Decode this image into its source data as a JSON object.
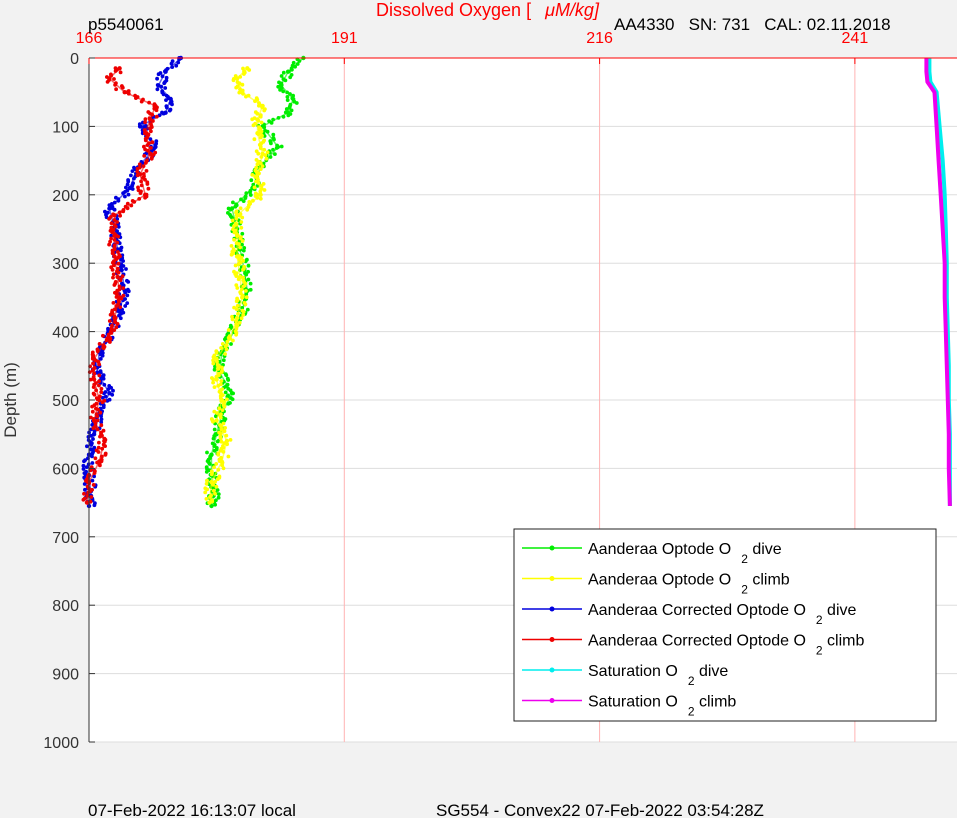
{
  "chart_data": {
    "type": "scatter",
    "title": "Dissolved Oxygen [",
    "title_unit": "μM/kg]",
    "ylabel": "Depth (m)",
    "xlim": [
      166,
      251
    ],
    "ylim": [
      0,
      1000
    ],
    "y_reversed": true,
    "x_axis_position": "top",
    "x_ticks": [
      166,
      191,
      216,
      241
    ],
    "y_ticks": [
      0,
      100,
      200,
      300,
      400,
      500,
      600,
      700,
      800,
      900,
      1000
    ],
    "grid": true,
    "legend_position": "bottom-right",
    "header_left": "p5540061",
    "header_right": "AA4330   SN: 731   CAL: 02.11.2018",
    "footer_left": "07-Feb-2022 16:13:07 local",
    "footer_right": "SG554 - Convex22 07-Feb-2022 03:54:28Z",
    "colors": {
      "title": "#ff0000",
      "x_ticks": "#ff0000",
      "x_grid": "#ffb3b3",
      "y_grid": "#dddddd",
      "axis_line": "#ff0000"
    },
    "series": [
      {
        "name": "Aanderaa Optode O",
        "sub": "2",
        "suffix": " dive",
        "color": "#00ee00",
        "marker": "dots",
        "depth": [
          0,
          20,
          40,
          60,
          80,
          100,
          130,
          160,
          190,
          220,
          250,
          280,
          310,
          340,
          370,
          400,
          430,
          460,
          490,
          520,
          550,
          580,
          610,
          640,
          655
        ],
        "values": [
          187.0,
          185.5,
          184.8,
          186.0,
          185.5,
          183.0,
          184.5,
          182.8,
          182.0,
          180.0,
          180.5,
          180.8,
          181.2,
          181.5,
          181.0,
          180.2,
          179.0,
          178.8,
          180.0,
          179.0,
          178.5,
          178.0,
          178.0,
          178.2,
          178.0
        ]
      },
      {
        "name": "Aanderaa Optode O",
        "sub": "2",
        "suffix": " climb",
        "color": "#ffff00",
        "marker": "dots",
        "depth": [
          15,
          30,
          50,
          70,
          90,
          110,
          140,
          170,
          200,
          230,
          260,
          290,
          320,
          350,
          380,
          410,
          440,
          470,
          500,
          530,
          560,
          590,
          620,
          650
        ],
        "values": [
          181.5,
          180.5,
          181.0,
          183.0,
          182.5,
          182.5,
          183.0,
          182.5,
          182.8,
          180.5,
          180.5,
          180.5,
          180.8,
          181.0,
          180.5,
          179.8,
          178.5,
          178.5,
          179.0,
          178.5,
          179.5,
          179.0,
          178.0,
          177.8
        ]
      },
      {
        "name": "Aanderaa Corrected Optode O",
        "sub": "2",
        "suffix": " dive",
        "color": "#0000dd",
        "marker": "dots",
        "depth": [
          0,
          20,
          40,
          60,
          80,
          100,
          130,
          160,
          190,
          220,
          250,
          280,
          310,
          340,
          370,
          400,
          430,
          460,
          490,
          520,
          550,
          580,
          610,
          640,
          655
        ],
        "values": [
          175.0,
          173.5,
          172.8,
          174.0,
          173.5,
          171.0,
          172.5,
          170.8,
          170.0,
          168.0,
          168.5,
          168.8,
          169.2,
          169.5,
          169.0,
          168.2,
          167.0,
          166.8,
          168.0,
          167.0,
          166.5,
          166.0,
          166.0,
          166.2,
          166.0
        ]
      },
      {
        "name": "Aanderaa Corrected Optode O",
        "sub": "2",
        "suffix": " climb",
        "color": "#ee0000",
        "marker": "dots",
        "depth": [
          15,
          30,
          50,
          70,
          90,
          110,
          140,
          170,
          200,
          230,
          260,
          290,
          320,
          350,
          380,
          410,
          440,
          470,
          500,
          530,
          560,
          590,
          620,
          650
        ],
        "values": [
          169.0,
          168.0,
          169.5,
          172.5,
          172.0,
          171.5,
          172.0,
          171.0,
          171.5,
          168.5,
          168.5,
          168.5,
          168.8,
          169.0,
          168.5,
          167.8,
          166.5,
          166.5,
          167.0,
          166.5,
          167.5,
          167.0,
          166.0,
          165.8
        ]
      },
      {
        "name": "Saturation O",
        "sub": "2",
        "suffix": " dive",
        "color": "#00eeee",
        "marker": "line",
        "depth": [
          0,
          20,
          35,
          50,
          100,
          150,
          200,
          250,
          300,
          350,
          400,
          450,
          500,
          550,
          600,
          655
        ],
        "values": [
          248.3,
          248.3,
          248.4,
          249.0,
          249.3,
          249.6,
          249.8,
          249.9,
          250.0,
          250.0,
          250.1,
          250.2,
          250.2,
          250.3,
          250.3,
          250.3
        ]
      },
      {
        "name": "Saturation O",
        "sub": "2",
        "suffix": " climb",
        "color": "#ee00ee",
        "marker": "line",
        "depth": [
          0,
          20,
          35,
          50,
          100,
          150,
          200,
          250,
          300,
          350,
          400,
          450,
          500,
          550,
          600,
          655
        ],
        "values": [
          248.0,
          248.0,
          248.1,
          248.8,
          249.0,
          249.2,
          249.4,
          249.6,
          249.8,
          249.8,
          249.9,
          250.0,
          250.1,
          250.2,
          250.2,
          250.3
        ]
      }
    ]
  }
}
